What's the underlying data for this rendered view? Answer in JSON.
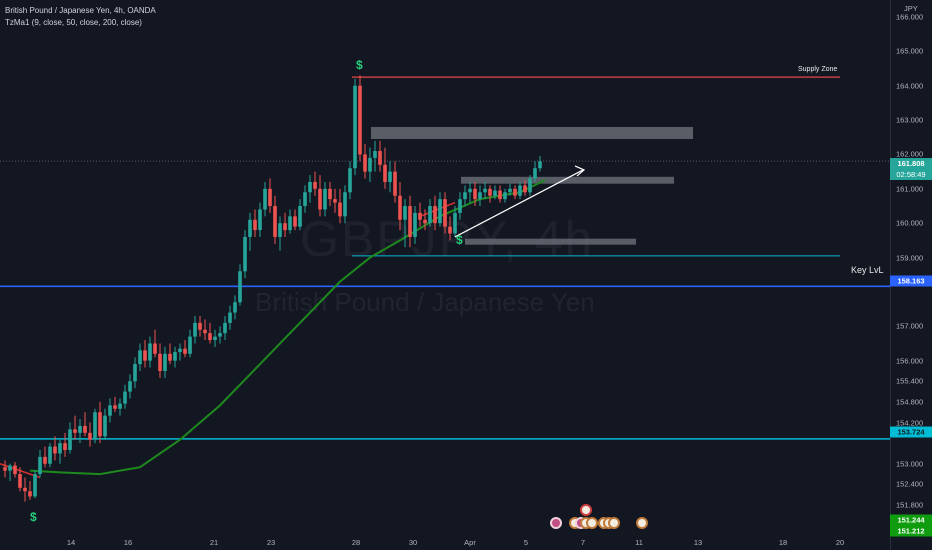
{
  "legend": {
    "title": "British Pound / Japanese Yen, 4h, OANDA",
    "indicator": "TzMa1 (9, close, 50, close, 200, close)"
  },
  "watermark": {
    "ticker": "GBPJPY, 4h",
    "name": "British Pound / Japanese Yen"
  },
  "axis": {
    "currency": "JPY",
    "y_ticks": [
      "166.000",
      "165.000",
      "164.000",
      "163.000",
      "162.000",
      "161.000",
      "160.000",
      "159.000",
      "157.000",
      "156.000",
      "155.400",
      "154.800",
      "154.200",
      "153.000",
      "152.400",
      "151.800"
    ],
    "x_ticks": [
      "14",
      "16",
      "21",
      "23",
      "28",
      "30",
      "Apr",
      "5",
      "7",
      "11",
      "13",
      "18",
      "20"
    ]
  },
  "price_labels": {
    "current_price": "161.808",
    "countdown": "02:58:49",
    "key_level": "158.163",
    "lower_level": "153.724",
    "bottom_price_1": "151.244",
    "bottom_price_2": "151.212"
  },
  "annotations": {
    "supply_zone": "Supply Zone",
    "key_level": "Key LvL",
    "dollar_sign": "$"
  },
  "colors": {
    "bg": "#131722",
    "up": "#26a69a",
    "down": "#ef5350",
    "ma_green": "#1e8a1e",
    "supply_line": "#e84545",
    "key_level_line": "#2962ff",
    "cyan_line": "#00bcd4",
    "zone_fill": "#6b6f78"
  },
  "chart_data": {
    "type": "candlestick",
    "symbol": "GBPJPY",
    "interval": "4h",
    "ylim": [
      151.2,
      166.2
    ],
    "horizontal_levels": [
      {
        "label": "Supply Zone",
        "price": 164.25
      },
      {
        "label": "Key LvL",
        "price": 158.163
      },
      {
        "price": 153.724
      },
      {
        "price": 159.05
      }
    ],
    "zones": [
      {
        "from": 162.45,
        "to": 162.8
      },
      {
        "from": 161.15,
        "to": 161.35
      },
      {
        "from": 159.4,
        "to": 159.55
      }
    ],
    "ma_series": [
      {
        "x": 30,
        "y": 152.8
      },
      {
        "x": 60,
        "y": 152.75
      },
      {
        "x": 100,
        "y": 152.7
      },
      {
        "x": 140,
        "y": 152.9
      },
      {
        "x": 180,
        "y": 153.7
      },
      {
        "x": 220,
        "y": 154.7
      },
      {
        "x": 250,
        "y": 155.6
      },
      {
        "x": 280,
        "y": 156.5
      },
      {
        "x": 310,
        "y": 157.4
      },
      {
        "x": 340,
        "y": 158.3
      },
      {
        "x": 370,
        "y": 159.0
      },
      {
        "x": 400,
        "y": 159.5
      },
      {
        "x": 440,
        "y": 160.2
      },
      {
        "x": 480,
        "y": 160.7
      },
      {
        "x": 520,
        "y": 160.9
      },
      {
        "x": 545,
        "y": 161.25
      }
    ],
    "candles": [
      {
        "x": 5,
        "o": 152.9,
        "h": 153.1,
        "l": 152.6,
        "c": 152.8
      },
      {
        "x": 10,
        "o": 152.8,
        "h": 153.0,
        "l": 152.5,
        "c": 152.95
      },
      {
        "x": 15,
        "o": 152.95,
        "h": 153.05,
        "l": 152.6,
        "c": 152.7
      },
      {
        "x": 20,
        "o": 152.7,
        "h": 152.9,
        "l": 152.2,
        "c": 152.3
      },
      {
        "x": 25,
        "o": 152.3,
        "h": 152.6,
        "l": 151.9,
        "c": 152.2
      },
      {
        "x": 30,
        "o": 152.2,
        "h": 152.5,
        "l": 151.95,
        "c": 152.05
      },
      {
        "x": 35,
        "o": 152.05,
        "h": 152.8,
        "l": 152.0,
        "c": 152.7
      },
      {
        "x": 40,
        "o": 152.7,
        "h": 153.4,
        "l": 152.6,
        "c": 153.2
      },
      {
        "x": 45,
        "o": 153.2,
        "h": 153.5,
        "l": 152.9,
        "c": 153.0
      },
      {
        "x": 50,
        "o": 153.0,
        "h": 153.6,
        "l": 152.9,
        "c": 153.5
      },
      {
        "x": 55,
        "o": 153.5,
        "h": 153.8,
        "l": 153.1,
        "c": 153.3
      },
      {
        "x": 60,
        "o": 153.3,
        "h": 153.7,
        "l": 153.0,
        "c": 153.6
      },
      {
        "x": 65,
        "o": 153.6,
        "h": 153.9,
        "l": 153.2,
        "c": 153.4
      },
      {
        "x": 70,
        "o": 153.4,
        "h": 154.2,
        "l": 153.3,
        "c": 154.0
      },
      {
        "x": 75,
        "o": 154.0,
        "h": 154.4,
        "l": 153.7,
        "c": 153.9
      },
      {
        "x": 80,
        "o": 153.9,
        "h": 154.3,
        "l": 153.6,
        "c": 154.1
      },
      {
        "x": 85,
        "o": 154.1,
        "h": 154.5,
        "l": 153.8,
        "c": 153.9
      },
      {
        "x": 90,
        "o": 153.9,
        "h": 154.2,
        "l": 153.5,
        "c": 153.7
      },
      {
        "x": 95,
        "o": 153.7,
        "h": 154.6,
        "l": 153.6,
        "c": 154.5
      },
      {
        "x": 100,
        "o": 154.5,
        "h": 154.8,
        "l": 153.6,
        "c": 153.8
      },
      {
        "x": 105,
        "o": 153.8,
        "h": 154.6,
        "l": 153.7,
        "c": 154.4
      },
      {
        "x": 110,
        "o": 154.4,
        "h": 154.9,
        "l": 154.2,
        "c": 154.7
      },
      {
        "x": 115,
        "o": 154.7,
        "h": 154.95,
        "l": 154.5,
        "c": 154.6
      },
      {
        "x": 120,
        "o": 154.6,
        "h": 154.9,
        "l": 154.4,
        "c": 154.75
      },
      {
        "x": 125,
        "o": 154.75,
        "h": 155.3,
        "l": 154.6,
        "c": 155.1
      },
      {
        "x": 130,
        "o": 155.1,
        "h": 155.6,
        "l": 154.9,
        "c": 155.4
      },
      {
        "x": 135,
        "o": 155.4,
        "h": 156.1,
        "l": 155.2,
        "c": 155.9
      },
      {
        "x": 140,
        "o": 155.9,
        "h": 156.5,
        "l": 155.7,
        "c": 156.3
      },
      {
        "x": 145,
        "o": 156.3,
        "h": 156.6,
        "l": 155.8,
        "c": 156.0
      },
      {
        "x": 150,
        "o": 156.0,
        "h": 156.7,
        "l": 155.8,
        "c": 156.5
      },
      {
        "x": 155,
        "o": 156.5,
        "h": 156.9,
        "l": 156.1,
        "c": 156.2
      },
      {
        "x": 160,
        "o": 156.2,
        "h": 156.5,
        "l": 155.5,
        "c": 155.7
      },
      {
        "x": 165,
        "o": 155.7,
        "h": 156.4,
        "l": 155.5,
        "c": 156.2
      },
      {
        "x": 170,
        "o": 156.2,
        "h": 156.5,
        "l": 155.9,
        "c": 156.0
      },
      {
        "x": 175,
        "o": 156.0,
        "h": 156.4,
        "l": 155.8,
        "c": 156.25
      },
      {
        "x": 180,
        "o": 156.25,
        "h": 156.5,
        "l": 156.0,
        "c": 156.35
      },
      {
        "x": 185,
        "o": 156.35,
        "h": 156.6,
        "l": 156.1,
        "c": 156.2
      },
      {
        "x": 190,
        "o": 156.2,
        "h": 156.9,
        "l": 156.1,
        "c": 156.7
      },
      {
        "x": 195,
        "o": 156.7,
        "h": 157.3,
        "l": 156.5,
        "c": 157.1
      },
      {
        "x": 200,
        "o": 157.1,
        "h": 157.3,
        "l": 156.7,
        "c": 156.9
      },
      {
        "x": 205,
        "o": 156.9,
        "h": 157.2,
        "l": 156.6,
        "c": 156.8
      },
      {
        "x": 210,
        "o": 156.8,
        "h": 157.1,
        "l": 156.5,
        "c": 156.6
      },
      {
        "x": 215,
        "o": 156.6,
        "h": 156.9,
        "l": 156.4,
        "c": 156.7
      },
      {
        "x": 220,
        "o": 156.7,
        "h": 157.0,
        "l": 156.5,
        "c": 156.8
      },
      {
        "x": 225,
        "o": 156.8,
        "h": 157.3,
        "l": 156.6,
        "c": 157.1
      },
      {
        "x": 230,
        "o": 157.1,
        "h": 157.6,
        "l": 156.9,
        "c": 157.4
      },
      {
        "x": 235,
        "o": 157.4,
        "h": 157.9,
        "l": 157.2,
        "c": 157.7
      },
      {
        "x": 240,
        "o": 157.7,
        "h": 158.8,
        "l": 157.6,
        "c": 158.6
      },
      {
        "x": 245,
        "o": 158.6,
        "h": 159.8,
        "l": 158.4,
        "c": 159.6
      },
      {
        "x": 250,
        "o": 159.6,
        "h": 160.3,
        "l": 159.2,
        "c": 160.1
      },
      {
        "x": 255,
        "o": 160.1,
        "h": 160.4,
        "l": 159.6,
        "c": 159.8
      },
      {
        "x": 260,
        "o": 159.8,
        "h": 160.6,
        "l": 159.6,
        "c": 160.4
      },
      {
        "x": 265,
        "o": 160.4,
        "h": 161.2,
        "l": 160.2,
        "c": 161.0
      },
      {
        "x": 270,
        "o": 161.0,
        "h": 161.3,
        "l": 160.3,
        "c": 160.5
      },
      {
        "x": 275,
        "o": 160.5,
        "h": 160.8,
        "l": 159.4,
        "c": 159.6
      },
      {
        "x": 280,
        "o": 159.6,
        "h": 160.2,
        "l": 159.2,
        "c": 160.0
      },
      {
        "x": 285,
        "o": 160.0,
        "h": 160.3,
        "l": 159.6,
        "c": 159.8
      },
      {
        "x": 290,
        "o": 159.8,
        "h": 160.4,
        "l": 159.7,
        "c": 160.2
      },
      {
        "x": 295,
        "o": 160.2,
        "h": 160.4,
        "l": 159.8,
        "c": 159.9
      },
      {
        "x": 300,
        "o": 159.9,
        "h": 160.7,
        "l": 159.8,
        "c": 160.5
      },
      {
        "x": 305,
        "o": 160.5,
        "h": 161.1,
        "l": 160.3,
        "c": 160.9
      },
      {
        "x": 310,
        "o": 160.9,
        "h": 161.4,
        "l": 160.6,
        "c": 161.2
      },
      {
        "x": 315,
        "o": 161.2,
        "h": 161.5,
        "l": 160.8,
        "c": 161.0
      },
      {
        "x": 320,
        "o": 161.0,
        "h": 161.4,
        "l": 160.2,
        "c": 160.4
      },
      {
        "x": 325,
        "o": 160.4,
        "h": 161.2,
        "l": 160.2,
        "c": 161.0
      },
      {
        "x": 330,
        "o": 161.0,
        "h": 161.2,
        "l": 160.5,
        "c": 160.7
      },
      {
        "x": 335,
        "o": 160.7,
        "h": 161.0,
        "l": 160.3,
        "c": 160.6
      },
      {
        "x": 340,
        "o": 160.6,
        "h": 161.0,
        "l": 160.0,
        "c": 160.2
      },
      {
        "x": 345,
        "o": 160.2,
        "h": 161.1,
        "l": 160.0,
        "c": 160.9
      },
      {
        "x": 350,
        "o": 160.9,
        "h": 161.8,
        "l": 160.7,
        "c": 161.6
      },
      {
        "x": 355,
        "o": 161.6,
        "h": 164.2,
        "l": 161.4,
        "c": 164.0
      },
      {
        "x": 360,
        "o": 164.0,
        "h": 164.3,
        "l": 161.8,
        "c": 162.0
      },
      {
        "x": 365,
        "o": 162.0,
        "h": 162.3,
        "l": 161.3,
        "c": 161.5
      },
      {
        "x": 370,
        "o": 161.5,
        "h": 162.2,
        "l": 161.2,
        "c": 161.9
      },
      {
        "x": 375,
        "o": 161.9,
        "h": 162.4,
        "l": 161.5,
        "c": 162.1
      },
      {
        "x": 380,
        "o": 162.1,
        "h": 162.4,
        "l": 161.5,
        "c": 161.7
      },
      {
        "x": 385,
        "o": 161.7,
        "h": 162.2,
        "l": 161.0,
        "c": 161.2
      },
      {
        "x": 390,
        "o": 161.2,
        "h": 161.8,
        "l": 160.9,
        "c": 161.5
      },
      {
        "x": 395,
        "o": 161.5,
        "h": 161.8,
        "l": 160.6,
        "c": 160.8
      },
      {
        "x": 400,
        "o": 160.8,
        "h": 161.2,
        "l": 159.8,
        "c": 160.1
      },
      {
        "x": 405,
        "o": 160.1,
        "h": 160.7,
        "l": 159.3,
        "c": 160.5
      },
      {
        "x": 410,
        "o": 160.5,
        "h": 160.8,
        "l": 159.3,
        "c": 159.6
      },
      {
        "x": 415,
        "o": 159.6,
        "h": 160.5,
        "l": 159.4,
        "c": 160.3
      },
      {
        "x": 420,
        "o": 160.3,
        "h": 160.6,
        "l": 159.9,
        "c": 160.1
      },
      {
        "x": 425,
        "o": 160.1,
        "h": 160.4,
        "l": 159.8,
        "c": 160.0
      },
      {
        "x": 430,
        "o": 160.0,
        "h": 160.7,
        "l": 159.9,
        "c": 160.5
      },
      {
        "x": 435,
        "o": 160.5,
        "h": 160.8,
        "l": 159.8,
        "c": 160.0
      },
      {
        "x": 440,
        "o": 160.0,
        "h": 160.9,
        "l": 159.9,
        "c": 160.7
      },
      {
        "x": 445,
        "o": 160.7,
        "h": 160.9,
        "l": 159.7,
        "c": 159.9
      },
      {
        "x": 450,
        "o": 159.9,
        "h": 160.2,
        "l": 159.5,
        "c": 159.7
      },
      {
        "x": 455,
        "o": 159.7,
        "h": 160.5,
        "l": 159.6,
        "c": 160.3
      },
      {
        "x": 460,
        "o": 160.3,
        "h": 160.9,
        "l": 160.1,
        "c": 160.7
      },
      {
        "x": 465,
        "o": 160.7,
        "h": 161.1,
        "l": 160.5,
        "c": 160.9
      },
      {
        "x": 470,
        "o": 160.9,
        "h": 161.2,
        "l": 160.6,
        "c": 161.0
      },
      {
        "x": 475,
        "o": 161.0,
        "h": 161.2,
        "l": 160.5,
        "c": 160.7
      },
      {
        "x": 480,
        "o": 160.7,
        "h": 161.1,
        "l": 160.5,
        "c": 160.9
      },
      {
        "x": 485,
        "o": 160.9,
        "h": 161.2,
        "l": 160.7,
        "c": 161.0
      },
      {
        "x": 490,
        "o": 161.0,
        "h": 161.1,
        "l": 160.6,
        "c": 160.8
      },
      {
        "x": 495,
        "o": 160.8,
        "h": 161.1,
        "l": 160.7,
        "c": 160.95
      },
      {
        "x": 500,
        "o": 160.95,
        "h": 161.1,
        "l": 160.6,
        "c": 160.7
      },
      {
        "x": 505,
        "o": 160.7,
        "h": 161.0,
        "l": 160.6,
        "c": 160.9
      },
      {
        "x": 510,
        "o": 160.9,
        "h": 161.15,
        "l": 160.8,
        "c": 161.0
      },
      {
        "x": 515,
        "o": 161.0,
        "h": 161.1,
        "l": 160.7,
        "c": 160.8
      },
      {
        "x": 520,
        "o": 160.8,
        "h": 161.2,
        "l": 160.7,
        "c": 161.1
      },
      {
        "x": 525,
        "o": 161.1,
        "h": 161.25,
        "l": 160.8,
        "c": 160.9
      },
      {
        "x": 530,
        "o": 160.9,
        "h": 161.4,
        "l": 160.8,
        "c": 161.3
      },
      {
        "x": 535,
        "o": 161.3,
        "h": 161.8,
        "l": 161.2,
        "c": 161.6
      },
      {
        "x": 540,
        "o": 161.6,
        "h": 161.95,
        "l": 161.5,
        "c": 161.8
      }
    ]
  }
}
